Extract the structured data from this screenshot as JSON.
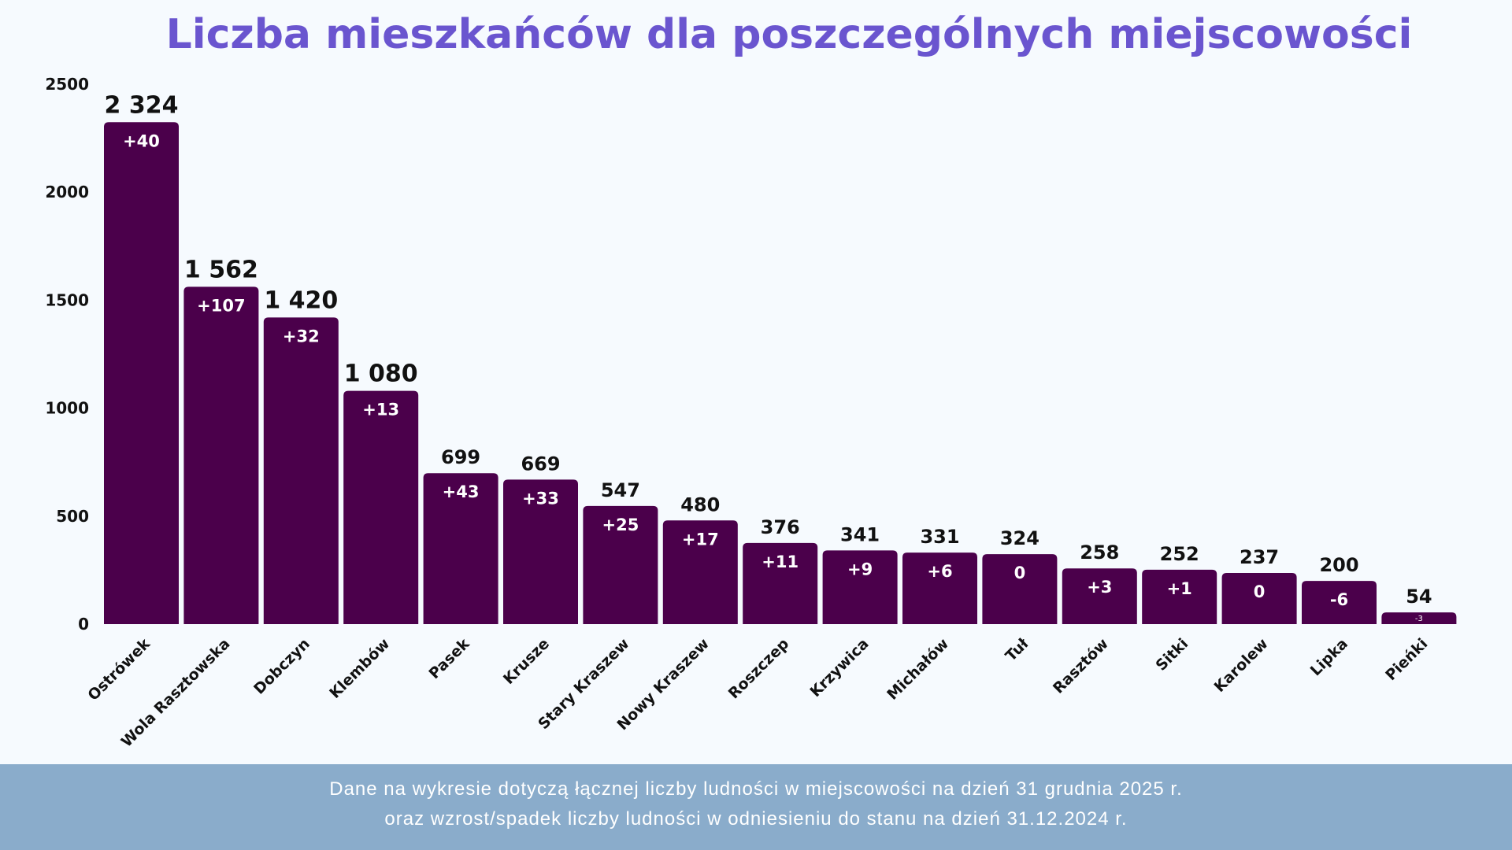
{
  "chart_data": {
    "type": "bar",
    "title": "Liczba mieszkańców dla poszczególnych miejscowości",
    "categories": [
      "Ostrówek",
      "Wola Rasztowska",
      "Dobczyn",
      "Klembów",
      "Pasek",
      "Krusze",
      "Stary Kraszew",
      "Nowy Kraszew",
      "Roszczep",
      "Krzywica",
      "Michałów",
      "Tuł",
      "Rasztów",
      "Sitki",
      "Karolew",
      "Lipka",
      "Pieńki"
    ],
    "values": [
      2324,
      1562,
      1420,
      1080,
      699,
      669,
      547,
      480,
      376,
      341,
      331,
      324,
      258,
      252,
      237,
      200,
      54
    ],
    "value_labels": [
      "2 324",
      "1 562",
      "1 420",
      "1 080",
      "699",
      "669",
      "547",
      "480",
      "376",
      "341",
      "331",
      "324",
      "258",
      "252",
      "237",
      "200",
      "54"
    ],
    "change_labels": [
      "+40",
      "+107",
      "+32",
      "+13",
      "+43",
      "+33",
      "+25",
      "+17",
      "+11",
      "+9",
      "+6",
      "0",
      "+3",
      "+1",
      "0",
      "-6",
      "-3"
    ],
    "ylim": [
      0,
      2500
    ],
    "yticks": [
      "0",
      "500",
      "1000",
      "1500",
      "2000",
      "2500"
    ],
    "grid": false,
    "bar_color": "#4b004b",
    "title_color": "#6a55cf"
  },
  "footer": {
    "line1": "Dane na wykresie dotyczą łącznej liczby ludności w miejscowości na dzień 31 grudnia 2025 r.",
    "line2": "oraz wzrost/spadek liczby ludności w odniesieniu do stanu na dzień 31.12.2024 r."
  }
}
